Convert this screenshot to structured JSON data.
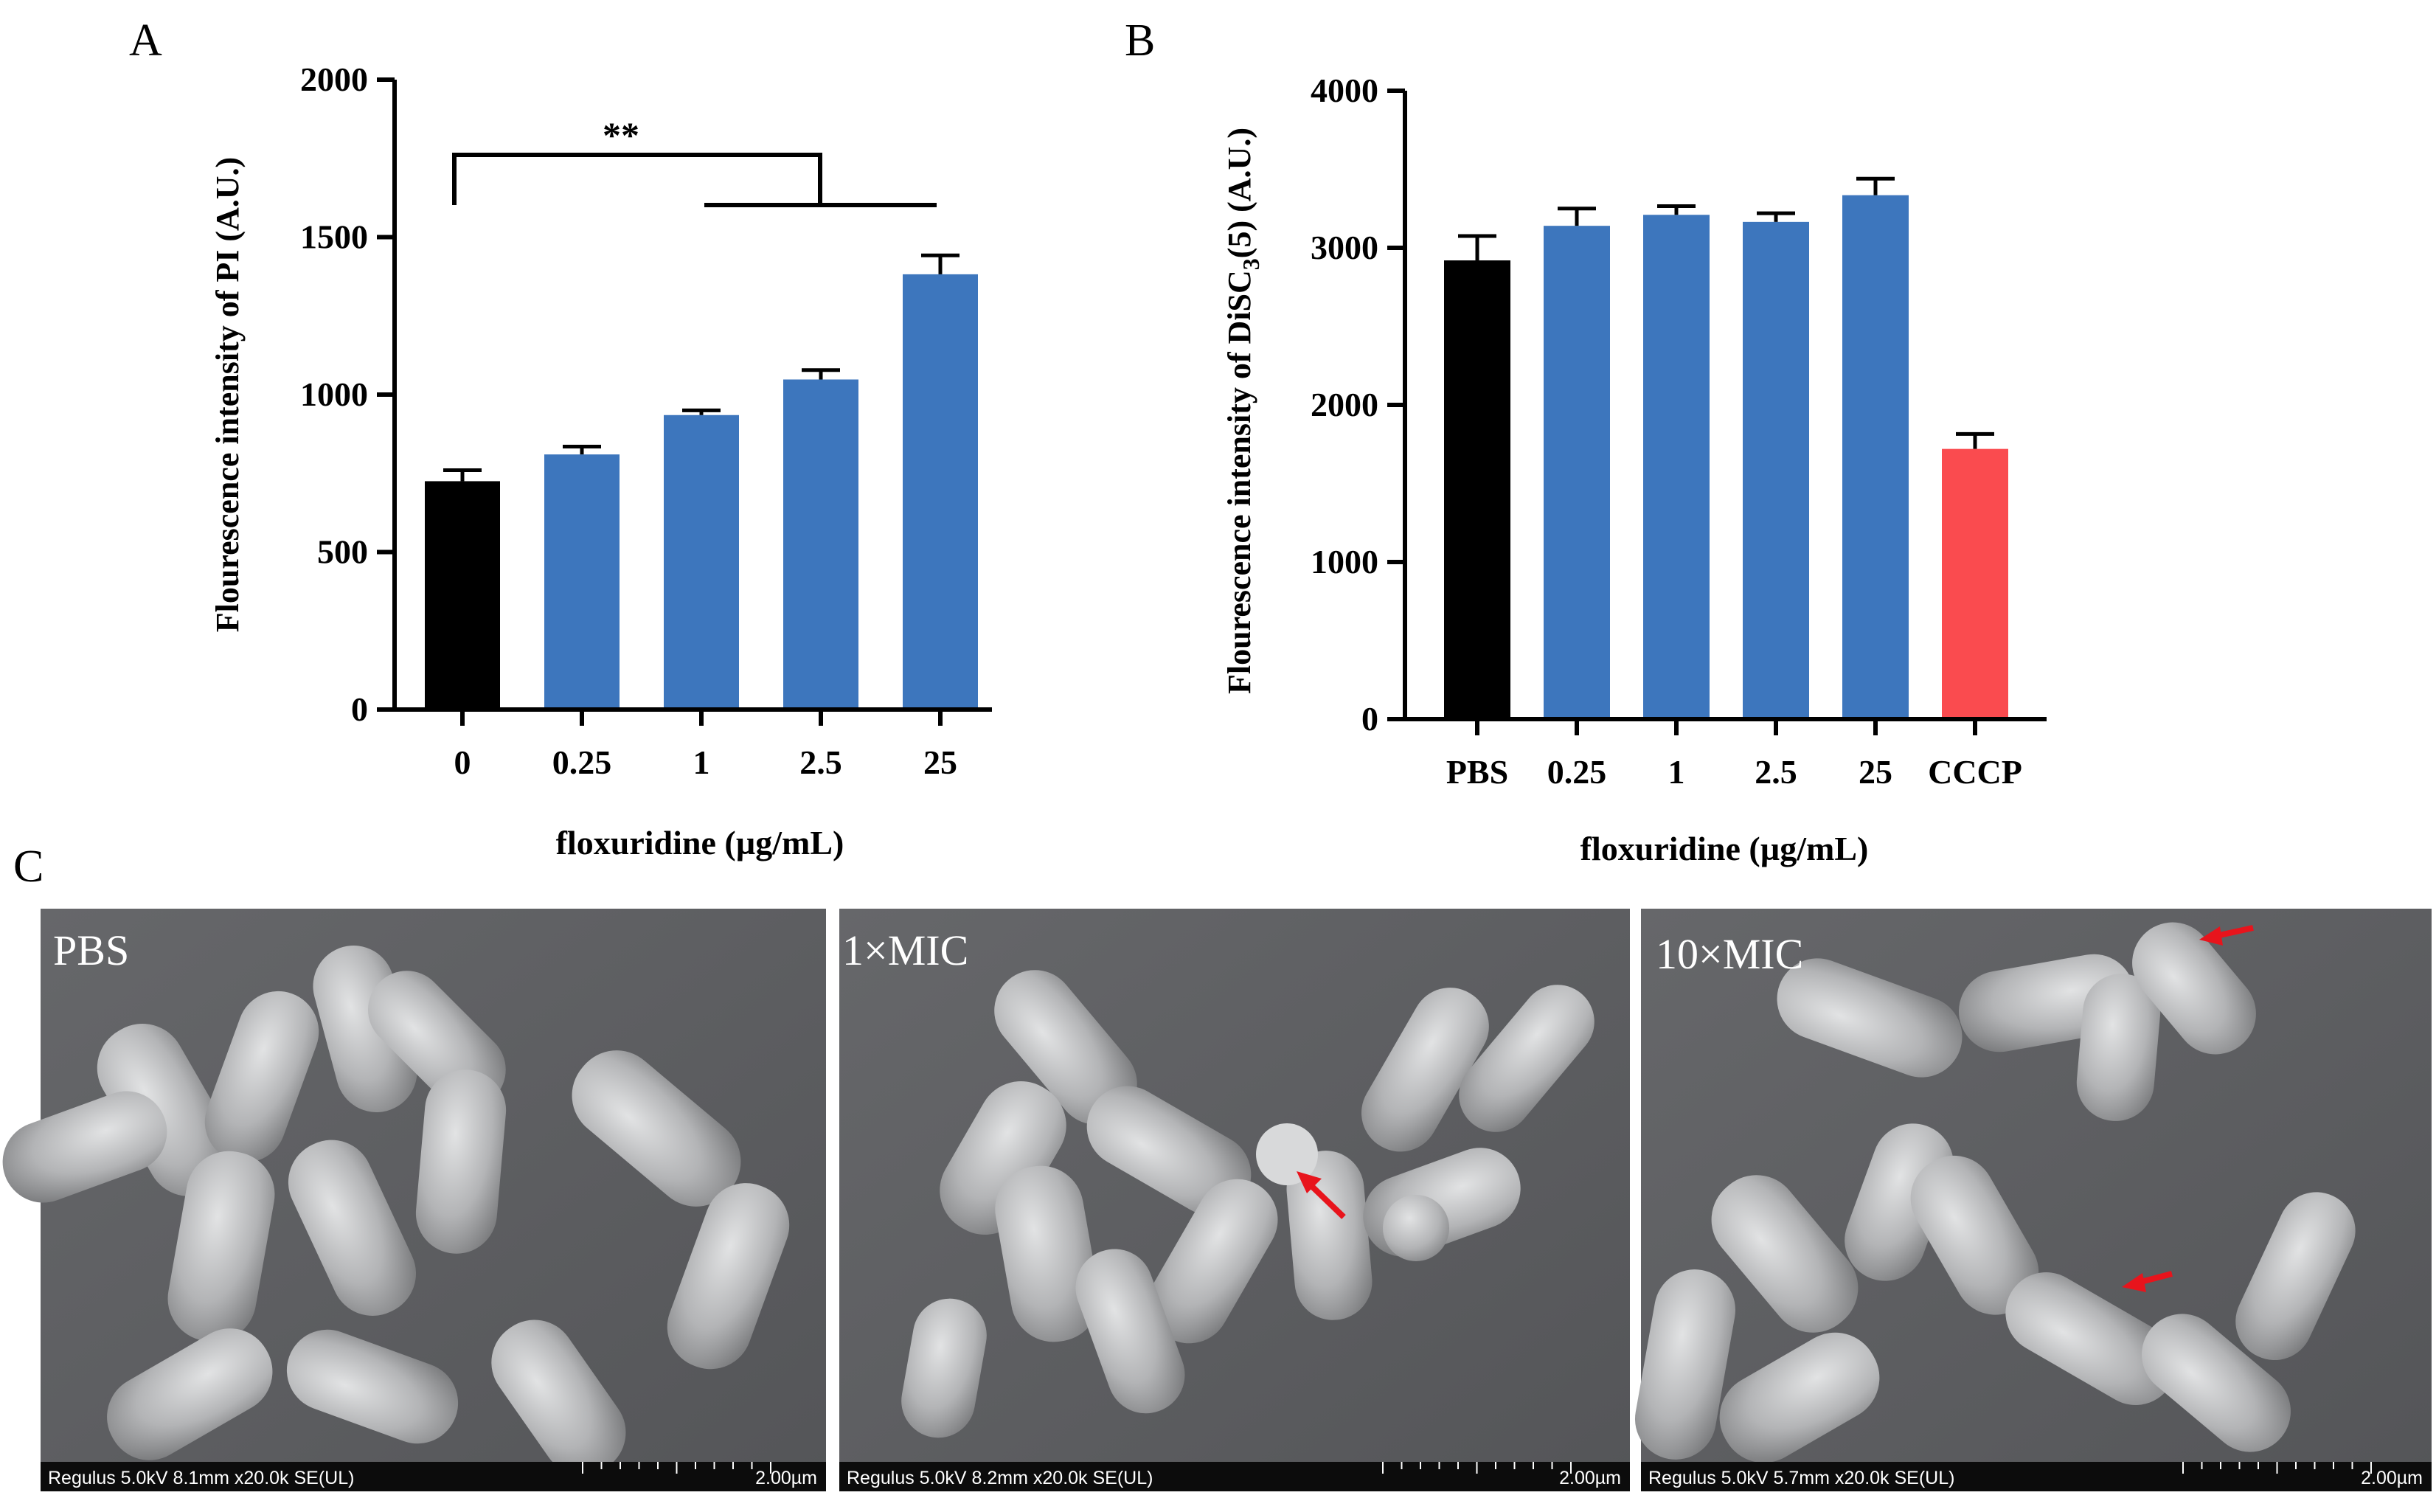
{
  "panels": {
    "a": {
      "letter": "A"
    },
    "b": {
      "letter": "B"
    },
    "c": {
      "letter": "C"
    }
  },
  "chart_data": [
    {
      "type": "bar",
      "categories": [
        "0",
        "0.25",
        "1",
        "2.5",
        "25"
      ],
      "values": [
        725,
        810,
        935,
        1048,
        1382
      ],
      "errors": [
        35,
        25,
        15,
        30,
        60
      ],
      "bar_colors": [
        "#000000",
        "#3d76bd",
        "#3d76bd",
        "#3d76bd",
        "#3d76bd"
      ],
      "title": "",
      "xlabel": "floxuridine (µg/mL)",
      "ylabel": "Flourescence intensity of PI (A.U.)",
      "ylim": [
        0,
        2000
      ],
      "yticks": [
        0,
        500,
        1000,
        1500,
        2000
      ],
      "grid": false,
      "annotation": "**"
    },
    {
      "type": "bar",
      "categories": [
        "PBS",
        "0.25",
        "1",
        "2.5",
        "25",
        "CCCP"
      ],
      "values": [
        2920,
        3140,
        3210,
        3165,
        3335,
        1720
      ],
      "errors": [
        155,
        110,
        55,
        55,
        105,
        95
      ],
      "bar_colors": [
        "#000000",
        "#3d76bd",
        "#3d76bd",
        "#3d76bd",
        "#3d76bd",
        "#fa4b4f"
      ],
      "title": "",
      "xlabel": "floxuridine (µg/mL)",
      "ylabel_main": "Flourescence intensity of DiSC",
      "ylabel_sub": "3",
      "ylabel_tail": "(5) (A.U.)",
      "ylim": [
        0,
        4000
      ],
      "yticks": [
        0,
        1000,
        2000,
        3000,
        4000
      ],
      "grid": false
    }
  ],
  "sem_images": [
    {
      "label": "PBS",
      "info": "Regulus 5.0kV 8.1mm x20.0k SE(UL)",
      "scale": "2.00µm"
    },
    {
      "label": "1×MIC",
      "info": "Regulus 5.0kV 8.2mm x20.0k SE(UL)",
      "scale": "2.00µm"
    },
    {
      "label": "10×MIC",
      "info": "Regulus 5.0kV 5.7mm x20.0k SE(UL)",
      "scale": "2.00µm"
    }
  ],
  "colors": {
    "black_bar": "#000000",
    "blue_bar": "#3d76bd",
    "red_bar": "#fa4b4f",
    "arrow": "#e8141c",
    "sem_bg": "#5f6061"
  }
}
